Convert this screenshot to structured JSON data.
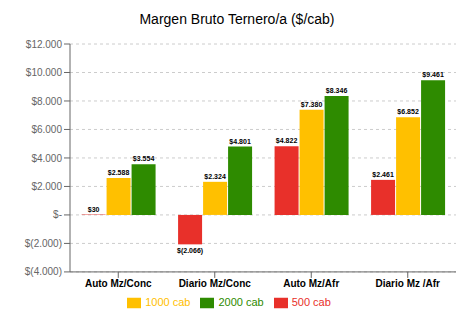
{
  "chart_data": {
    "type": "bar",
    "title": "Margen Bruto Ternero/a ($/cab)",
    "categories": [
      "Auto Mz/Conc",
      "Diario Mz/Conc",
      "Auto Mz/Afr",
      "Diario Mz /Afr"
    ],
    "series": [
      {
        "name": "500 cab",
        "color": "#e8302a",
        "values": [
          30,
          -2066,
          4822,
          2461
        ],
        "value_labels": [
          "$30",
          "$(2.066)",
          "$4.822",
          "$2.461"
        ]
      },
      {
        "name": "1000 cab",
        "color": "#ffc000",
        "values": [
          2588,
          2324,
          7380,
          6852
        ],
        "value_labels": [
          "$2.588",
          "$2.324",
          "$7.380",
          "$6.852"
        ]
      },
      {
        "name": "2000 cab",
        "color": "#2e8b00",
        "values": [
          3554,
          4801,
          8346,
          9461
        ],
        "value_labels": [
          "$3.554",
          "$4.801",
          "$8.346",
          "$9.461"
        ]
      }
    ],
    "ylim": [
      -4000,
      12000
    ],
    "yticks": [
      {
        "value": -4000,
        "label": "$(4.000)"
      },
      {
        "value": -2000,
        "label": "$(2.000)"
      },
      {
        "value": 0,
        "label": "$-"
      },
      {
        "value": 2000,
        "label": "$2.000"
      },
      {
        "value": 4000,
        "label": "$4.000"
      },
      {
        "value": 6000,
        "label": "$6.000"
      },
      {
        "value": 8000,
        "label": "$8.000"
      },
      {
        "value": 10000,
        "label": "$10.000"
      },
      {
        "value": 12000,
        "label": "$12.000"
      }
    ],
    "grid": true,
    "legend": "bottom",
    "data_labels": true
  }
}
